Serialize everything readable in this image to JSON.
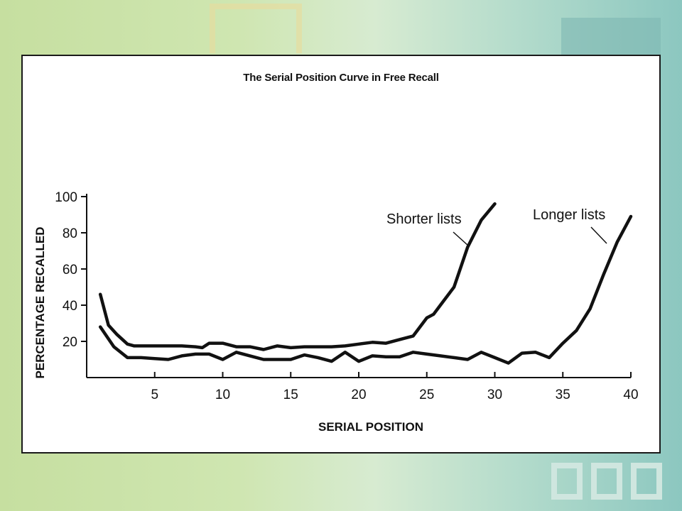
{
  "chart_data": {
    "type": "line",
    "title": "The Serial Position Curve in Free Recall",
    "xlabel": "SERIAL POSITION",
    "ylabel": "PERCENTAGE RECALLED",
    "xlim": [
      0,
      40
    ],
    "ylim": [
      0,
      100
    ],
    "xticks": [
      5,
      10,
      15,
      20,
      25,
      30,
      35,
      40
    ],
    "yticks": [
      20,
      40,
      60,
      80,
      100
    ],
    "grid": false,
    "series": [
      {
        "name": "Shorter lists",
        "x": [
          1,
          1.6,
          2.2,
          3,
          3.5,
          5,
          6,
          7,
          8,
          8.5,
          9,
          10,
          11,
          12,
          13,
          14,
          15,
          16,
          17,
          18,
          19,
          20,
          21,
          22,
          23,
          24,
          25,
          25.5,
          26,
          27,
          28,
          29,
          30
        ],
        "y": [
          46,
          29,
          24,
          18.5,
          17.5,
          17.5,
          17.5,
          17.5,
          17,
          16.5,
          19,
          19,
          17,
          17,
          15.5,
          17.5,
          16.5,
          17,
          17,
          17,
          17.5,
          18.5,
          19.5,
          19,
          21,
          23,
          33,
          35,
          40,
          50,
          72,
          87,
          96
        ]
      },
      {
        "name": "Longer lists",
        "x": [
          1,
          2,
          3,
          4,
          5,
          6,
          7,
          8,
          9,
          10,
          11,
          12,
          13,
          14,
          15,
          16,
          17,
          18,
          19,
          20,
          21,
          22,
          23,
          24,
          25,
          26,
          27,
          28,
          29,
          30,
          31,
          32,
          33,
          34,
          35,
          36,
          37,
          38,
          39,
          40
        ],
        "y": [
          28,
          17,
          11,
          11,
          10.5,
          10,
          12,
          13,
          13,
          10,
          14,
          12,
          10,
          10,
          10,
          12.5,
          11,
          9,
          14,
          9,
          12,
          11.5,
          11.5,
          14,
          13,
          12,
          11,
          10,
          14,
          11,
          8,
          13.5,
          14,
          11,
          19,
          26,
          38,
          57,
          75,
          89
        ]
      }
    ]
  }
}
